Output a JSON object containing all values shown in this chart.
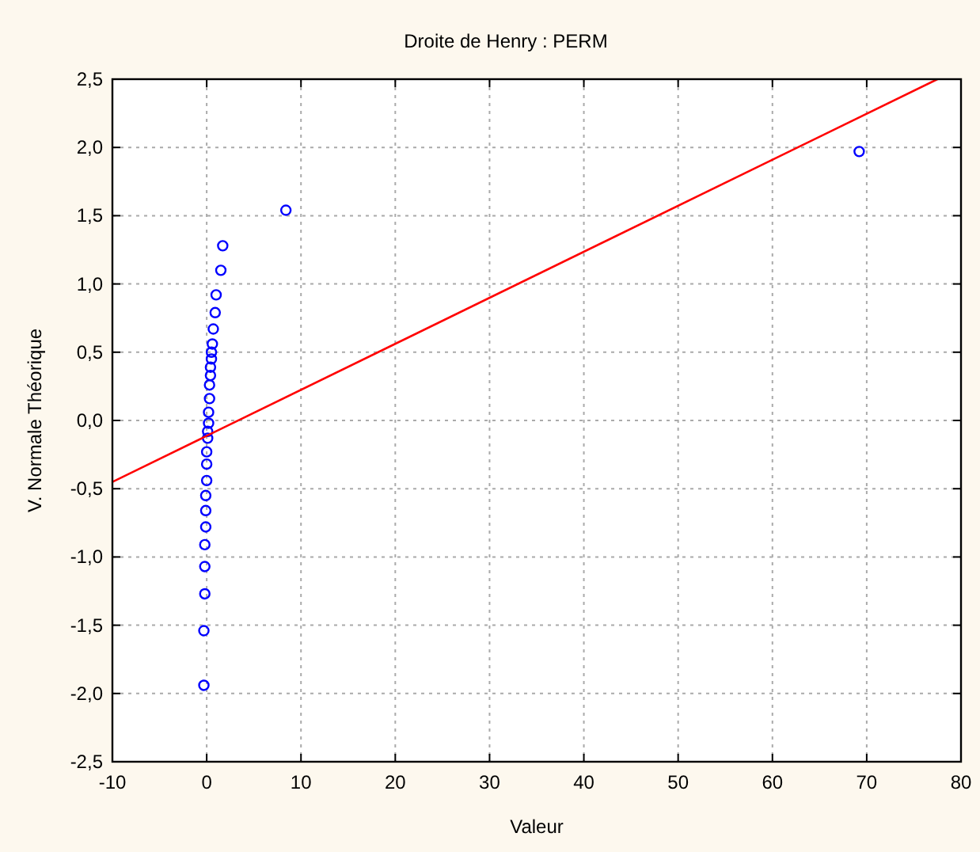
{
  "chart_data": {
    "type": "scatter",
    "title": "Droite de Henry : PERM",
    "xlabel": "Valeur",
    "ylabel": "V. Normale Théorique",
    "xlim": [
      -10,
      80
    ],
    "xticks": [
      -10,
      0,
      10,
      20,
      30,
      40,
      50,
      60,
      70,
      80
    ],
    "ylim": [
      -2.5,
      2.5
    ],
    "yticks": [
      {
        "value": -2.5,
        "label": "-2,5"
      },
      {
        "value": -2,
        "label": "-2,0"
      },
      {
        "value": -1.5,
        "label": "-1,5"
      },
      {
        "value": -1,
        "label": "-1,0"
      },
      {
        "value": -0.5,
        "label": "-0,5"
      },
      {
        "value": 0,
        "label": "0,0"
      },
      {
        "value": 0.5,
        "label": "0,5"
      },
      {
        "value": 1,
        "label": "1,0"
      },
      {
        "value": 1.5,
        "label": "1,5"
      },
      {
        "value": 2,
        "label": "2,0"
      },
      {
        "value": 2.5,
        "label": "2,5"
      }
    ],
    "grid": true,
    "series": [
      {
        "marker": "circle",
        "color": "#0000ff",
        "x": [
          69.2,
          8.4,
          1.7,
          1.5,
          1.0,
          0.9,
          0.7,
          0.6,
          0.5,
          0.5,
          0.4,
          0.4,
          0.3,
          0.3,
          0.2,
          0.2,
          0.1,
          0.1,
          0.0,
          0.0,
          0.0,
          -0.1,
          -0.1,
          -0.1,
          -0.2,
          -0.2,
          -0.2,
          -0.3,
          -0.3
        ],
        "values": [
          1.97,
          1.54,
          1.28,
          1.1,
          0.92,
          0.79,
          0.67,
          0.56,
          0.5,
          0.45,
          0.39,
          0.33,
          0.26,
          0.16,
          0.06,
          -0.02,
          -0.08,
          -0.13,
          -0.23,
          -0.32,
          -0.44,
          -0.55,
          -0.66,
          -0.78,
          -0.91,
          -1.07,
          -1.27,
          -1.54,
          -1.94
        ]
      },
      {
        "type": "line",
        "color": "#ff0000",
        "line_style": "solid",
        "x": [
          -10,
          77.5
        ],
        "values": [
          -0.45,
          2.5
        ]
      }
    ]
  }
}
